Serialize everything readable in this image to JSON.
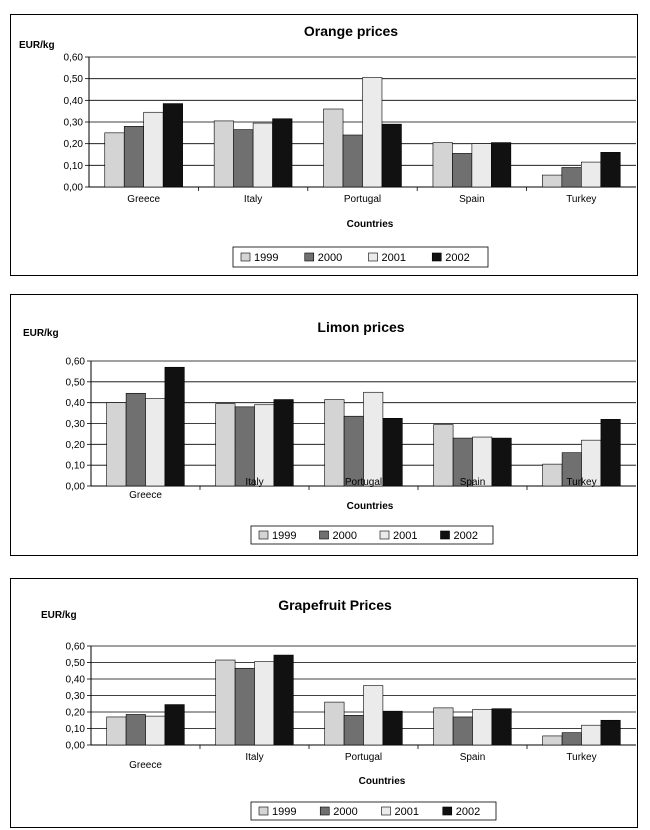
{
  "chart_data": [
    {
      "type": "bar",
      "title": "Orange prices",
      "ylabel": "EUR/kg",
      "xlabel": "Countries",
      "categories": [
        "Greece",
        "Italy",
        "Portugal",
        "Spain",
        "Turkey"
      ],
      "yticks": [
        "0,00",
        "0,10",
        "0,20",
        "0,30",
        "0,40",
        "0,50",
        "0,60"
      ],
      "ylim": [
        0,
        0.6
      ],
      "grid": true,
      "legend_position": "bottom",
      "series": [
        {
          "name": "1999",
          "color": "#d4d4d4",
          "values": [
            0.25,
            0.305,
            0.36,
            0.205,
            0.055
          ]
        },
        {
          "name": "2000",
          "color": "#707070",
          "values": [
            0.28,
            0.265,
            0.24,
            0.155,
            0.09
          ]
        },
        {
          "name": "2001",
          "color": "#ebebeb",
          "values": [
            0.345,
            0.295,
            0.505,
            0.2,
            0.115
          ]
        },
        {
          "name": "2002",
          "color": "#111111",
          "values": [
            0.385,
            0.315,
            0.29,
            0.205,
            0.16
          ]
        }
      ]
    },
    {
      "type": "bar",
      "title": "Limon prices",
      "ylabel": "EUR/kg",
      "xlabel": "Countries",
      "categories": [
        "Greece",
        "Italy",
        "Portugal",
        "Spain",
        "Turkey"
      ],
      "yticks": [
        "0,00",
        "0,10",
        "0,20",
        "0,30",
        "0,40",
        "0,50",
        "0,60"
      ],
      "ylim": [
        0,
        0.6
      ],
      "grid": true,
      "legend_position": "bottom",
      "series": [
        {
          "name": "1999",
          "color": "#d4d4d4",
          "values": [
            0.4,
            0.395,
            0.415,
            0.295,
            0.105
          ]
        },
        {
          "name": "2000",
          "color": "#707070",
          "values": [
            0.445,
            0.38,
            0.335,
            0.23,
            0.16
          ]
        },
        {
          "name": "2001",
          "color": "#ebebeb",
          "values": [
            0.42,
            0.39,
            0.45,
            0.235,
            0.22
          ]
        },
        {
          "name": "2002",
          "color": "#111111",
          "values": [
            0.57,
            0.415,
            0.325,
            0.23,
            0.32
          ]
        }
      ]
    },
    {
      "type": "bar",
      "title": "Grapefruit Prices",
      "ylabel": "EUR/kg",
      "xlabel": "Countries",
      "categories": [
        "Greece",
        "Italy",
        "Portugal",
        "Spain",
        "Turkey"
      ],
      "yticks": [
        "0,00",
        "0,10",
        "0,20",
        "0,30",
        "0,40",
        "0,50",
        "0,60"
      ],
      "ylim": [
        0,
        0.6
      ],
      "grid": true,
      "legend_position": "bottom",
      "series": [
        {
          "name": "1999",
          "color": "#d4d4d4",
          "values": [
            0.17,
            0.515,
            0.26,
            0.225,
            0.055
          ]
        },
        {
          "name": "2000",
          "color": "#707070",
          "values": [
            0.185,
            0.465,
            0.18,
            0.17,
            0.075
          ]
        },
        {
          "name": "2001",
          "color": "#ebebeb",
          "values": [
            0.175,
            0.505,
            0.36,
            0.215,
            0.12
          ]
        },
        {
          "name": "2002",
          "color": "#111111",
          "values": [
            0.245,
            0.545,
            0.205,
            0.22,
            0.15
          ]
        }
      ]
    }
  ]
}
